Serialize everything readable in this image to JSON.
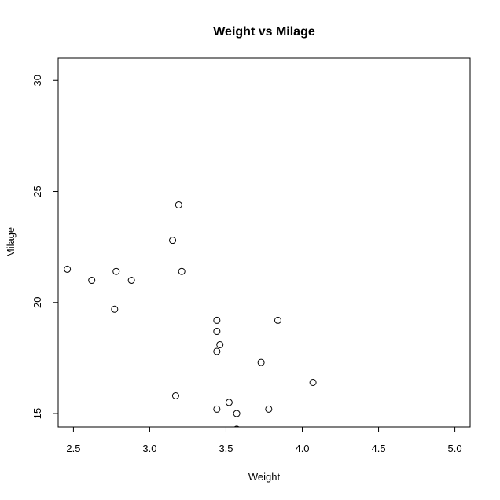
{
  "chart_data": {
    "type": "scatter",
    "title": "Weight vs Milage",
    "xlabel": "Weight",
    "ylabel": "Milage",
    "xlim": [
      2.4,
      5.1
    ],
    "ylim": [
      14.4,
      31.0
    ],
    "xticks": [
      "2.5",
      "3.0",
      "3.5",
      "4.0",
      "4.5",
      "5.0"
    ],
    "yticks": [
      "15",
      "20",
      "25",
      "30"
    ],
    "grid": false,
    "legend": "none",
    "marker": "open-circle",
    "points": [
      {
        "x": 2.46,
        "y": 21.5
      },
      {
        "x": 2.62,
        "y": 21.0
      },
      {
        "x": 2.77,
        "y": 19.7
      },
      {
        "x": 2.78,
        "y": 21.4
      },
      {
        "x": 2.88,
        "y": 21.0
      },
      {
        "x": 3.15,
        "y": 22.8
      },
      {
        "x": 3.17,
        "y": 15.8
      },
      {
        "x": 3.19,
        "y": 24.4
      },
      {
        "x": 3.21,
        "y": 21.4
      },
      {
        "x": 3.44,
        "y": 19.2
      },
      {
        "x": 3.44,
        "y": 18.7
      },
      {
        "x": 3.44,
        "y": 17.8
      },
      {
        "x": 3.44,
        "y": 15.2
      },
      {
        "x": 3.46,
        "y": 18.1
      },
      {
        "x": 3.52,
        "y": 15.5
      },
      {
        "x": 3.57,
        "y": 15.0
      },
      {
        "x": 3.57,
        "y": 14.3
      },
      {
        "x": 3.73,
        "y": 17.3
      },
      {
        "x": 3.78,
        "y": 15.2
      },
      {
        "x": 3.84,
        "y": 19.2
      },
      {
        "x": 4.07,
        "y": 16.4
      }
    ]
  }
}
